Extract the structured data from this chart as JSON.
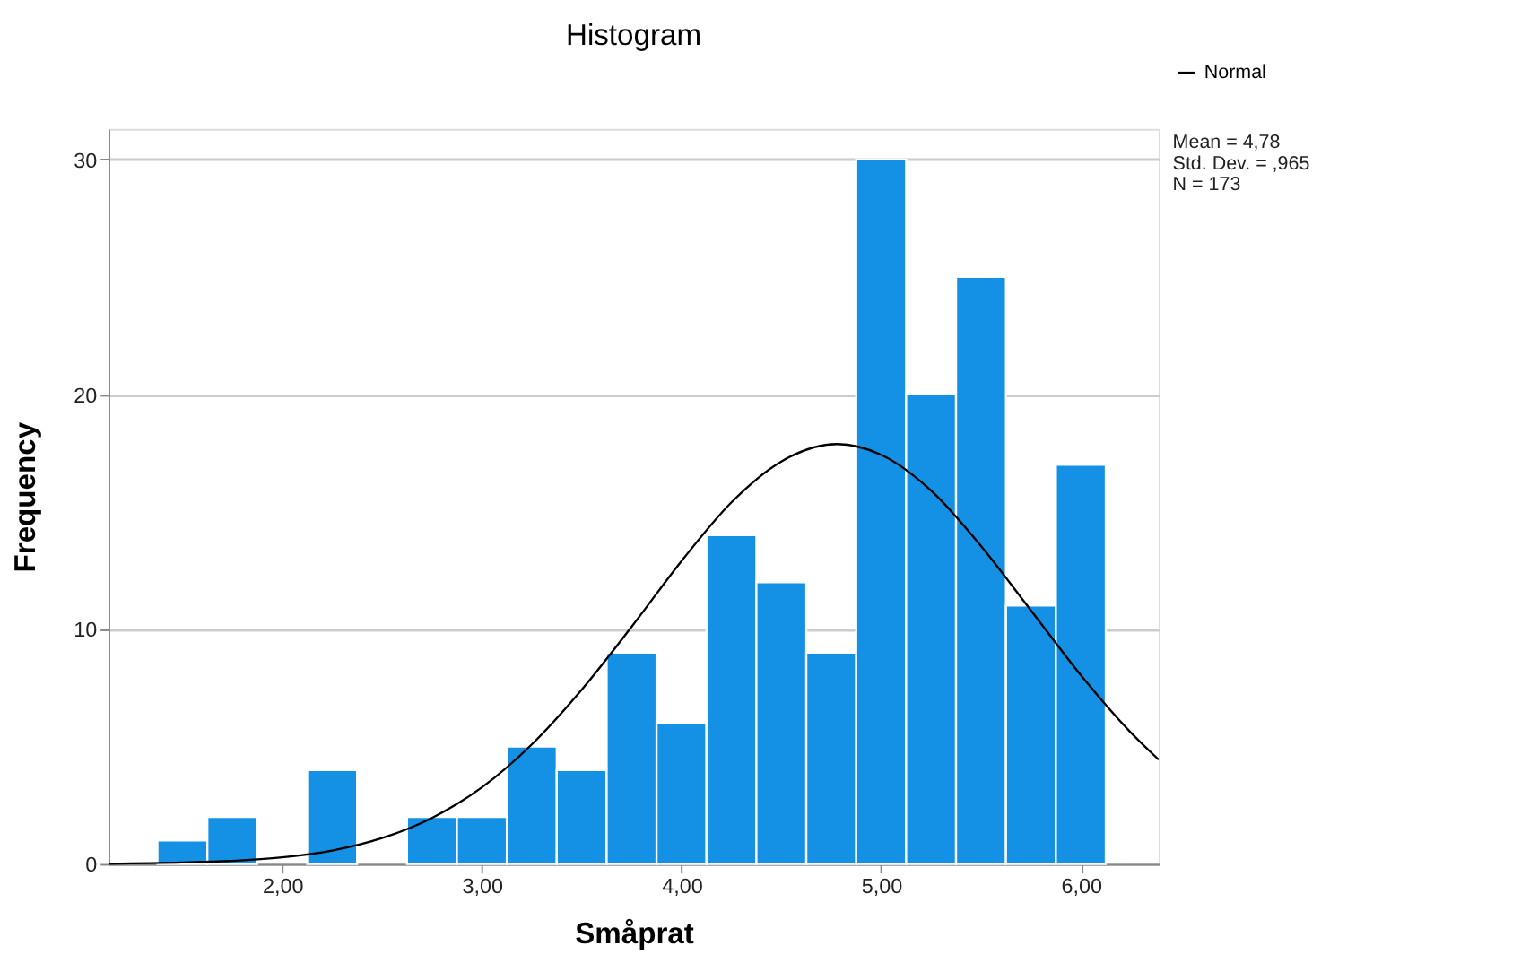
{
  "chart_data": {
    "type": "histogram",
    "title": "Histogram",
    "xlabel": "Småprat",
    "ylabel": "Frequency",
    "series": [
      {
        "color": "#1490e4",
        "bins": [
          1.375,
          1.625,
          1.875,
          2.125,
          2.375,
          2.625,
          2.875,
          3.125,
          3.375,
          3.625,
          3.875,
          4.125,
          4.375,
          4.625,
          4.875,
          5.125,
          5.375,
          5.625,
          5.875,
          6.125
        ],
        "values": [
          1,
          2,
          0,
          4,
          0,
          2,
          2,
          5,
          4,
          9,
          6,
          14,
          12,
          9,
          30,
          20,
          25,
          11,
          17
        ]
      },
      {
        "type": "line",
        "name": "Normal",
        "color": "#000000",
        "x": [
          1.13,
          1.5,
          1.75,
          2.0,
          2.25,
          2.5,
          2.75,
          3.0,
          3.25,
          3.5,
          3.75,
          4.0,
          4.25,
          4.5,
          4.78,
          5.0,
          5.25,
          5.5,
          5.75,
          6.0,
          6.25,
          6.39
        ],
        "values": [
          0.01,
          0.06,
          0.13,
          0.28,
          0.57,
          1.1,
          1.96,
          3.26,
          5.09,
          7.42,
          10.1,
          12.9,
          15.4,
          17.14,
          17.88,
          17.42,
          15.9,
          13.54,
          10.8,
          8.04,
          5.6,
          4.44
        ]
      }
    ],
    "xlim": [
      1.13,
      6.39
    ],
    "xticks": [
      {
        "value": 2,
        "label": "2,00"
      },
      {
        "value": 3,
        "label": "3,00"
      },
      {
        "value": 4,
        "label": "4,00"
      },
      {
        "value": 5,
        "label": "5,00"
      },
      {
        "value": 6,
        "label": "6,00"
      }
    ],
    "ylim": [
      0,
      31.3
    ],
    "yticks": [
      0,
      10,
      20,
      30
    ],
    "grid": "y",
    "legend": "top right",
    "annotations": [
      "Mean = 4,78",
      "Std. Dev. = ,965",
      "N = 173"
    ]
  }
}
